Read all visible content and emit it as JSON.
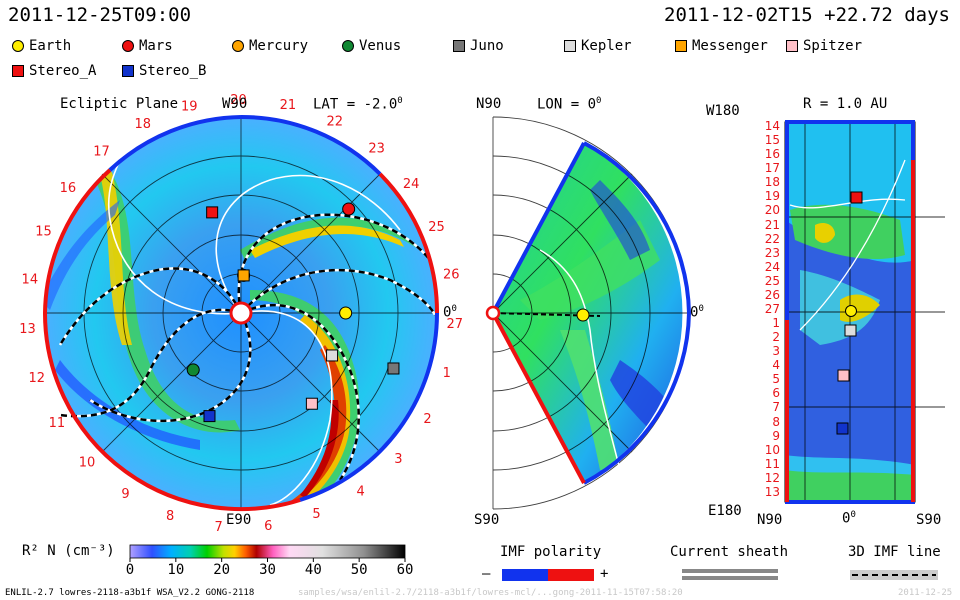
{
  "header": {
    "left_time": "2011-12-25T09:00",
    "right_time": "2011-12-02T15 +22.72 days"
  },
  "legend": [
    {
      "name": "Earth",
      "shape": "circle",
      "color": "#ffee00"
    },
    {
      "name": "Mars",
      "shape": "circle",
      "color": "#ee1111"
    },
    {
      "name": "Mercury",
      "shape": "circle",
      "color": "#ffa500"
    },
    {
      "name": "Venus",
      "shape": "circle",
      "color": "#118833"
    },
    {
      "name": "Juno",
      "shape": "square",
      "color": "#777777"
    },
    {
      "name": "Kepler",
      "shape": "square",
      "color": "#dddddd"
    },
    {
      "name": "Messenger",
      "shape": "square",
      "color": "#ffa500"
    },
    {
      "name": "Spitzer",
      "shape": "square",
      "color": "#ffc0c8"
    },
    {
      "name": "Stereo_A",
      "shape": "square",
      "color": "#ee1111"
    },
    {
      "name": "Stereo_B",
      "shape": "square",
      "color": "#1133cc"
    }
  ],
  "panels": {
    "ecliptic": {
      "title": "Ecliptic Plane",
      "top_label": "W90",
      "bottom_label": "E90",
      "right_label": "0",
      "lat_label": "LAT = -2.0",
      "degree": "0",
      "carrington_labels": [
        "19",
        "20",
        "21",
        "22",
        "23",
        "24",
        "25",
        "26",
        "27",
        "1",
        "2",
        "3",
        "4",
        "5",
        "6",
        "7",
        "8",
        "9",
        "10",
        "11",
        "12",
        "13",
        "14",
        "15",
        "16",
        "17",
        "18"
      ]
    },
    "meridional": {
      "top_label": "N90",
      "bottom_label": "S90",
      "lon_label": "LON = 0",
      "right_label": "0",
      "degree": "0"
    },
    "radial": {
      "title": "R = 1.0 AU",
      "top_left": "W180",
      "bottom_left": "E180",
      "bottom_mid": "0",
      "bottom_left_axis": "N90",
      "bottom_right_axis": "S90",
      "degree": "0",
      "rows": [
        "14",
        "15",
        "16",
        "17",
        "18",
        "19",
        "20",
        "21",
        "22",
        "23",
        "24",
        "25",
        "26",
        "27",
        "1",
        "2",
        "3",
        "4",
        "5",
        "6",
        "7",
        "8",
        "9",
        "10",
        "11",
        "12",
        "13"
      ]
    }
  },
  "colorbar": {
    "label": "R² N (cm⁻³)",
    "ticks": [
      "0",
      "10",
      "20",
      "30",
      "40",
      "50",
      "60"
    ],
    "range": [
      0,
      60
    ]
  },
  "imf_legend": {
    "polarity_label": "IMF polarity",
    "minus": "–",
    "plus": "+",
    "negative_color": "#1133ee",
    "positive_color": "#ee1111",
    "sheath_label": "Current sheath",
    "line3d_label": "3D IMF line"
  },
  "footer": {
    "model": "ENLIL-2.7 lowres-2118-a3b1f WSA_V2.2 GONG-2118",
    "path": "samples/wsa/enlil-2.7/2118-a3b1f/lowres-mcl/...gong-2011-11-15T07:58:20",
    "date": "2011-12-25"
  },
  "chart_data": {
    "type": "heatmap",
    "title": "",
    "quantity": "R² N (cm⁻³)",
    "range": [
      0,
      60
    ],
    "colormap": [
      "#a0a0ff",
      "#4060ff",
      "#00c0ff",
      "#00d0a0",
      "#00d000",
      "#c0e000",
      "#ffd000",
      "#ff6000",
      "#c00000",
      "#ff80c0",
      "#ffd0f0",
      "#c0c0c0",
      "#808080",
      "#000000"
    ],
    "ecliptic_markers": [
      {
        "name": "Earth",
        "lon_deg": 0,
        "r_au": 1.0
      },
      {
        "name": "Mars",
        "lon_deg": 44,
        "r_au": 1.43
      },
      {
        "name": "Mercury",
        "lon_deg": 86,
        "r_au": 0.36
      },
      {
        "name": "Venus",
        "lon_deg": 230,
        "r_au": 0.71
      },
      {
        "name": "Juno",
        "lon_deg": -20,
        "r_au": 1.55
      },
      {
        "name": "Kepler",
        "lon_deg": -25,
        "r_au": 0.96
      },
      {
        "name": "Messenger",
        "lon_deg": 86,
        "r_au": 0.36
      },
      {
        "name": "Spitzer",
        "lon_deg": -52,
        "r_au": 1.1
      },
      {
        "name": "Stereo_A",
        "lon_deg": 106,
        "r_au": 1.0
      },
      {
        "name": "Stereo_B",
        "lon_deg": -107,
        "r_au": 1.03
      }
    ]
  }
}
